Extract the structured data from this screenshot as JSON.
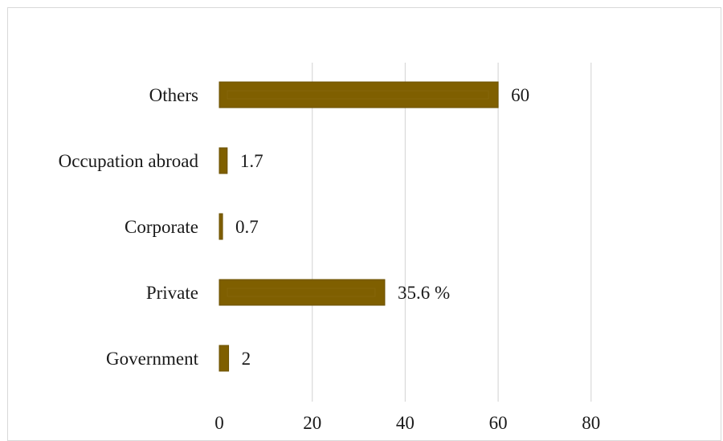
{
  "chart_data": {
    "type": "bar",
    "orientation": "horizontal",
    "categories": [
      "Others",
      "Occupation abroad",
      "Corporate",
      "Private",
      "Government"
    ],
    "values": [
      60,
      1.7,
      0.7,
      35.6,
      2
    ],
    "value_labels": [
      "60",
      "1.7",
      "0.7",
      "35.6 %",
      "2"
    ],
    "xlim": [
      0,
      80
    ],
    "xticks": [
      0,
      20,
      40,
      60,
      80
    ],
    "grid": true,
    "legend": "none",
    "title": "",
    "xlabel": "",
    "ylabel": "",
    "bar_color": "#7f5f00",
    "bar_edge_color": "#6b5000",
    "grid_color": "#d9d9d9"
  }
}
